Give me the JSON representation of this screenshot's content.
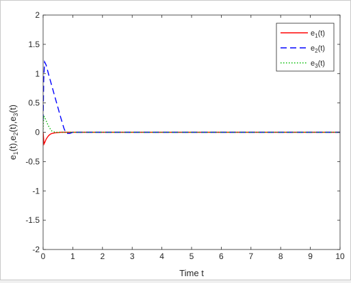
{
  "chart_data": {
    "type": "line",
    "title": "",
    "xlabel": "Time t",
    "ylabel": {
      "parts": [
        "e",
        "1",
        "(t),e",
        "2",
        "(t),e",
        "3",
        "(t)"
      ]
    },
    "xlim": [
      0,
      10
    ],
    "ylim": [
      -2,
      2
    ],
    "xticks": [
      0,
      1,
      2,
      3,
      4,
      5,
      6,
      7,
      8,
      9,
      10
    ],
    "xtick_labels": [
      "0",
      "1",
      "2",
      "3",
      "4",
      "5",
      "6",
      "7",
      "8",
      "9",
      "10"
    ],
    "yticks": [
      -2,
      -1.5,
      -1,
      -0.5,
      0,
      0.5,
      1,
      1.5,
      2
    ],
    "ytick_labels": [
      "-2",
      "-1.5",
      "-1",
      "-0.5",
      "0",
      "0.5",
      "1",
      "1.5",
      "2"
    ],
    "grid": false,
    "legend_position": "top-right",
    "series": [
      {
        "name": {
          "base": "e",
          "sub": "1",
          "suffix": "(t)"
        },
        "color": "#ff0000",
        "style": "solid",
        "x": [
          0,
          0.03,
          0.06,
          0.1,
          0.15,
          0.2,
          0.25,
          0.3,
          0.4,
          0.5,
          0.6,
          0.8,
          1.0,
          10
        ],
        "y": [
          0,
          -0.2,
          -0.17,
          -0.12,
          -0.08,
          -0.05,
          -0.03,
          -0.02,
          -0.01,
          -0.005,
          0,
          0,
          0,
          0
        ]
      },
      {
        "name": {
          "base": "e",
          "sub": "2",
          "suffix": "(t)"
        },
        "color": "#0000ff",
        "style": "dashed",
        "x": [
          0,
          0.02,
          0.05,
          0.1,
          0.2,
          0.3,
          0.4,
          0.5,
          0.6,
          0.7,
          0.75,
          0.8,
          0.9,
          1.0,
          10
        ],
        "y": [
          0.2,
          0.9,
          1.2,
          1.15,
          0.96,
          0.78,
          0.6,
          0.42,
          0.24,
          0.07,
          0.01,
          -0.02,
          -0.02,
          0,
          0
        ]
      },
      {
        "name": {
          "base": "e",
          "sub": "3",
          "suffix": "(t)"
        },
        "color": "#00bb00",
        "style": "dotted",
        "x": [
          0,
          0.02,
          0.05,
          0.1,
          0.15,
          0.2,
          0.25,
          0.3,
          0.35,
          0.4,
          0.6,
          10
        ],
        "y": [
          0.05,
          0.28,
          0.26,
          0.2,
          0.14,
          0.09,
          0.05,
          0.02,
          0.01,
          0,
          0,
          0
        ]
      }
    ]
  }
}
